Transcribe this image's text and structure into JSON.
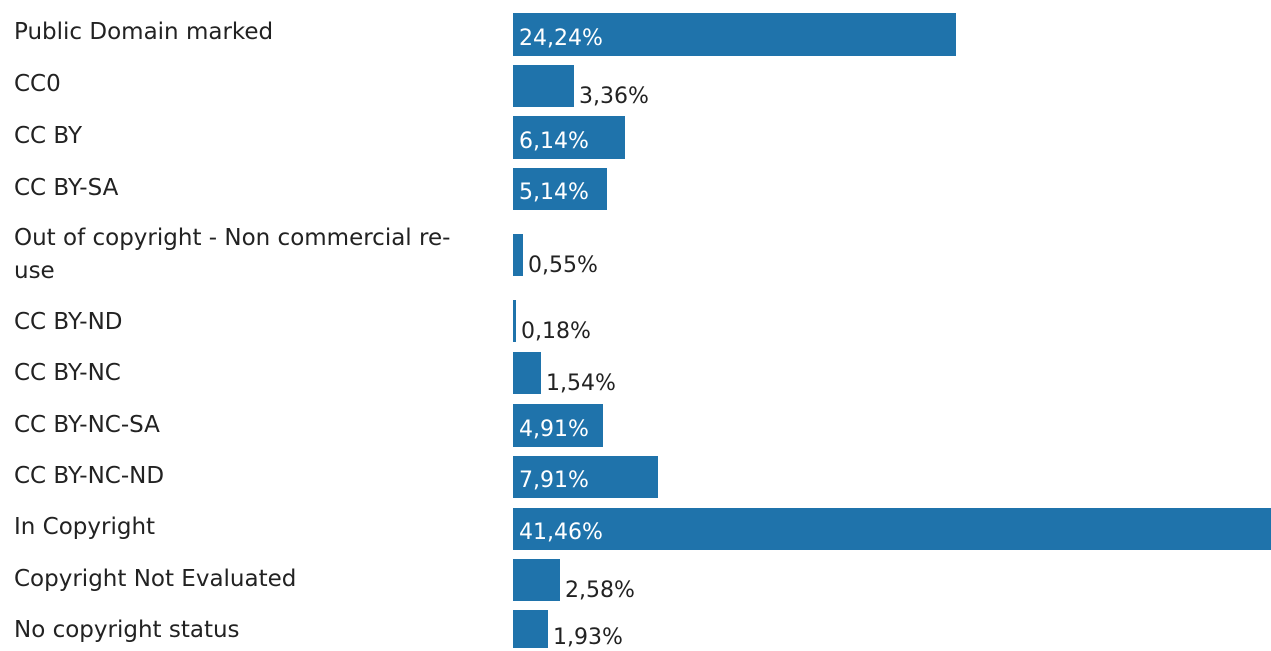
{
  "chart_data": {
    "type": "bar",
    "orientation": "horizontal",
    "categories": [
      "Public Domain marked",
      "CC0",
      "CC BY",
      "CC BY-SA",
      "Out of copyright - Non commercial re-use",
      "CC BY-ND",
      "CC BY-NC",
      "CC BY-NC-SA",
      "CC BY-NC-ND",
      "In Copyright",
      "Copyright Not Evaluated",
      "No copyright status"
    ],
    "values": [
      24.24,
      3.36,
      6.14,
      5.14,
      0.55,
      0.18,
      1.54,
      4.91,
      7.91,
      41.46,
      2.58,
      1.93
    ],
    "value_labels": [
      "24,24%",
      "3,36%",
      "6,14%",
      "5,14%",
      "0,55%",
      "0,18%",
      "1,54%",
      "4,91%",
      "7,91%",
      "41,46%",
      "2,58%",
      "1,93%"
    ],
    "colors": {
      "bar": "#1f73ab"
    },
    "grid": false,
    "legend": "none"
  }
}
